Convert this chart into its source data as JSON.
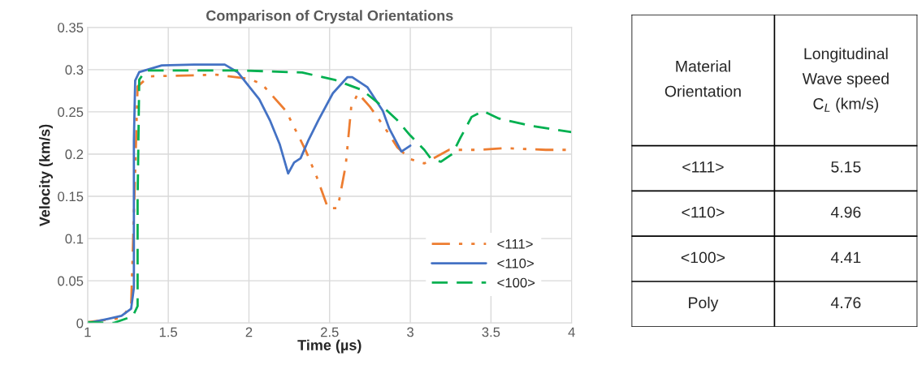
{
  "chart_data": [
    {
      "type": "line",
      "title": "Comparison of Crystal Orientations",
      "xlabel": "Time (µs)",
      "ylabel": "Velocity (km/s)",
      "xlim": [
        1,
        4
      ],
      "xticks": [
        1,
        1.5,
        2,
        2.5,
        3,
        3.5,
        4
      ],
      "ylim": [
        0,
        0.35
      ],
      "yticks": [
        0,
        0.05,
        0.1,
        0.15,
        0.2,
        0.25,
        0.3,
        0.35
      ],
      "grid": true,
      "legend": "lower right",
      "series": [
        {
          "name": "<111>",
          "color": "#ed7d31",
          "line_style": "dashdotdot",
          "x": [
            1.0,
            1.21,
            1.27,
            1.295,
            1.31,
            1.38,
            1.8,
            2.0,
            2.08,
            2.23,
            2.35,
            2.42,
            2.49,
            2.55,
            2.6,
            2.634,
            2.676,
            2.75,
            2.836,
            2.92,
            3.0,
            3.087,
            3.24,
            3.42,
            3.59,
            3.84,
            4.0
          ],
          "values": [
            0.001,
            0.006,
            0.021,
            0.18,
            0.28,
            0.292,
            0.294,
            0.289,
            0.283,
            0.251,
            0.205,
            0.173,
            0.136,
            0.136,
            0.187,
            0.256,
            0.272,
            0.256,
            0.233,
            0.208,
            0.194,
            0.189,
            0.205,
            0.205,
            0.207,
            0.205,
            0.205
          ]
        },
        {
          "name": "<110>",
          "color": "#4472c4",
          "line_style": "solid",
          "x": [
            1.0,
            1.127,
            1.21,
            1.27,
            1.287,
            1.287,
            1.295,
            1.32,
            1.46,
            1.66,
            1.85,
            1.93,
            2.064,
            2.13,
            2.19,
            2.243,
            2.28,
            2.32,
            2.37,
            2.43,
            2.52,
            2.61,
            2.64,
            2.735,
            2.83,
            2.87,
            2.945,
            3.0
          ],
          "values": [
            0.0,
            0.005,
            0.0085,
            0.017,
            0.042,
            0.216,
            0.287,
            0.297,
            0.305,
            0.306,
            0.306,
            0.297,
            0.265,
            0.24,
            0.212,
            0.177,
            0.19,
            0.195,
            0.217,
            0.24,
            0.272,
            0.291,
            0.291,
            0.279,
            0.251,
            0.23,
            0.203,
            0.21
          ]
        },
        {
          "name": "<100>",
          "color": "#00b050",
          "line_style": "dashed",
          "x": [
            1.0,
            1.16,
            1.28,
            1.31,
            1.31,
            1.32,
            1.36,
            1.96,
            2.33,
            2.53,
            2.7,
            2.83,
            2.92,
            3.0,
            3.087,
            3.13,
            3.19,
            3.26,
            3.31,
            3.38,
            3.45,
            3.55,
            3.76,
            4.0
          ],
          "values": [
            0.001,
            0.0,
            0.008,
            0.02,
            0.145,
            0.288,
            0.299,
            0.299,
            0.2965,
            0.288,
            0.276,
            0.256,
            0.24,
            0.222,
            0.205,
            0.194,
            0.191,
            0.2,
            0.219,
            0.244,
            0.251,
            0.242,
            0.233,
            0.226
          ]
        }
      ]
    },
    {
      "type": "other",
      "annotations": [
        "Material\nOrientation",
        "Longitudinal\nWave speed\nC$_{L}$ (km/s)"
      ],
      "categories": [
        "<111>",
        "<110>",
        "<100>",
        "Poly"
      ],
      "values": [
        5.15,
        4.96,
        4.41,
        4.76
      ],
      "data_labels": true
    }
  ]
}
